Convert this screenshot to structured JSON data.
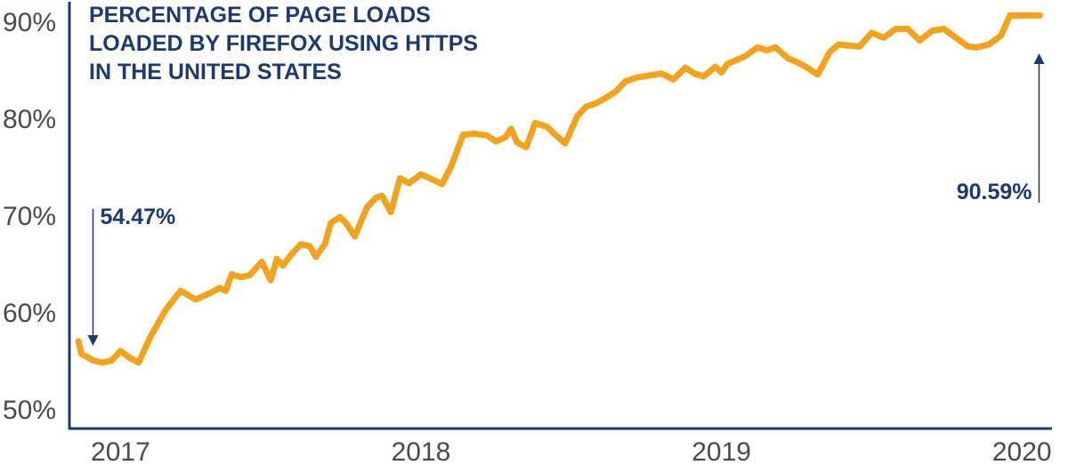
{
  "chart_data": {
    "type": "line",
    "title_lines": [
      "PERCENTAGE OF PAGE LOADS",
      "LOADED BY FIREFOX USING HTTPS",
      "IN THE UNITED STATES"
    ],
    "xlabel": "",
    "ylabel": "",
    "xlim": [
      2016.83,
      2020.1
    ],
    "ylim": [
      48,
      92
    ],
    "x_ticks": [
      2017,
      2018,
      2019,
      2020
    ],
    "x_tick_labels": [
      "2017",
      "2018",
      "2019",
      "2020"
    ],
    "y_ticks": [
      50,
      60,
      70,
      80,
      90
    ],
    "y_tick_labels": [
      "50%",
      "60%",
      "70%",
      "80%",
      "90%"
    ],
    "grid": false,
    "legend": "none",
    "series": [
      {
        "color": "#f2a21b",
        "x": [
          2016.86,
          2016.87,
          2016.91,
          2016.94,
          2016.97,
          2017.0,
          2017.03,
          2017.06,
          2017.1,
          2017.15,
          2017.2,
          2017.25,
          2017.3,
          2017.33,
          2017.35,
          2017.37,
          2017.4,
          2017.43,
          2017.47,
          2017.5,
          2017.52,
          2017.54,
          2017.57,
          2017.6,
          2017.63,
          2017.65,
          2017.68,
          2017.7,
          2017.73,
          2017.75,
          2017.78,
          2017.82,
          2017.85,
          2017.87,
          2017.9,
          2017.93,
          2017.96,
          2018.0,
          2018.03,
          2018.07,
          2018.1,
          2018.14,
          2018.18,
          2018.22,
          2018.25,
          2018.28,
          2018.3,
          2018.32,
          2018.35,
          2018.38,
          2018.42,
          2018.45,
          2018.48,
          2018.52,
          2018.55,
          2018.58,
          2018.61,
          2018.65,
          2018.68,
          2018.72,
          2018.76,
          2018.8,
          2018.84,
          2018.88,
          2018.91,
          2018.94,
          2018.98,
          2019.0,
          2019.02,
          2019.05,
          2019.08,
          2019.12,
          2019.15,
          2019.18,
          2019.22,
          2019.25,
          2019.28,
          2019.32,
          2019.36,
          2019.39,
          2019.42,
          2019.46,
          2019.5,
          2019.54,
          2019.58,
          2019.62,
          2019.66,
          2019.7,
          2019.74,
          2019.78,
          2019.82,
          2019.85,
          2019.89,
          2019.93,
          2019.96,
          2019.99,
          2020.02,
          2020.06
        ],
        "y": [
          57.0,
          55.7,
          55.0,
          54.8,
          55.0,
          56.0,
          55.3,
          54.8,
          57.5,
          60.2,
          62.2,
          61.3,
          62.0,
          62.5,
          62.2,
          63.9,
          63.6,
          63.8,
          65.2,
          63.3,
          65.5,
          64.8,
          66.0,
          67.0,
          66.8,
          65.7,
          67.0,
          69.2,
          69.8,
          69.2,
          67.8,
          70.8,
          71.8,
          72.0,
          70.3,
          73.8,
          73.3,
          74.2,
          73.8,
          73.2,
          75.0,
          78.3,
          78.4,
          78.2,
          77.6,
          78.0,
          78.9,
          77.5,
          77.0,
          79.5,
          79.1,
          78.2,
          77.4,
          80.2,
          81.2,
          81.5,
          82.0,
          82.8,
          83.8,
          84.2,
          84.4,
          84.6,
          84.0,
          85.2,
          84.6,
          84.3,
          85.3,
          84.7,
          85.6,
          86.0,
          86.4,
          87.3,
          87.0,
          87.3,
          86.2,
          85.8,
          85.3,
          84.5,
          86.8,
          87.6,
          87.5,
          87.4,
          88.8,
          88.3,
          89.2,
          89.2,
          88.0,
          89.0,
          89.2,
          88.3,
          87.4,
          87.3,
          87.6,
          88.5,
          90.59,
          90.59,
          90.59,
          90.59
        ]
      }
    ],
    "annotations": [
      {
        "label": "54.47%",
        "x": 2016.87,
        "y": 54.47
      },
      {
        "label": "90.59%",
        "x": 2020.06,
        "y": 90.59
      }
    ]
  }
}
